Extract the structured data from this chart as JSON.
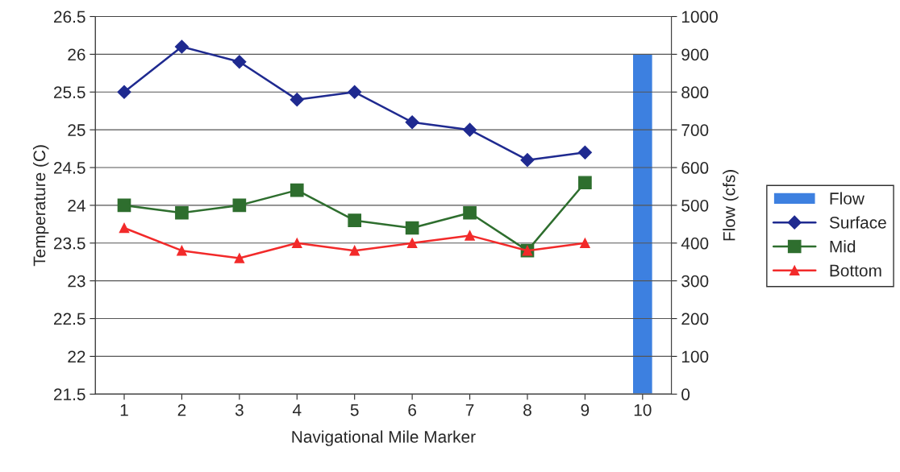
{
  "chart_data": {
    "type": "line",
    "xlabel": "Navigational Mile Marker",
    "ylabel": "Temperature (C)",
    "y2label": "Flow (cfs)",
    "categories": [
      "1",
      "2",
      "3",
      "4",
      "5",
      "6",
      "7",
      "8",
      "9",
      "10"
    ],
    "series": [
      {
        "name": "Flow",
        "type": "bar",
        "axis": "y2",
        "color": "#3d80e0",
        "values": [
          null,
          null,
          null,
          null,
          null,
          null,
          null,
          null,
          null,
          900
        ]
      },
      {
        "name": "Surface",
        "color": "#1f2a90",
        "marker": "diamond",
        "values": [
          25.5,
          26.1,
          25.9,
          25.4,
          25.5,
          25.1,
          25.0,
          24.6,
          24.7,
          null
        ]
      },
      {
        "name": "Mid",
        "color": "#2e6e2e",
        "marker": "square",
        "values": [
          24.0,
          23.9,
          24.0,
          24.2,
          23.8,
          23.7,
          23.9,
          23.4,
          24.3,
          null
        ]
      },
      {
        "name": "Bottom",
        "color": "#f22a2a",
        "marker": "triangle",
        "values": [
          23.7,
          23.4,
          23.3,
          23.5,
          23.4,
          23.5,
          23.6,
          23.4,
          23.5,
          null
        ]
      }
    ],
    "ylim": [
      21.5,
      26.5
    ],
    "yticks": [
      21.5,
      22,
      22.5,
      23,
      23.5,
      24,
      24.5,
      25,
      25.5,
      26,
      26.5
    ],
    "y2lim": [
      0,
      1000
    ],
    "y2ticks": [
      0,
      100,
      200,
      300,
      400,
      500,
      600,
      700,
      800,
      900,
      1000
    ],
    "grid": "y",
    "legend": "right"
  }
}
